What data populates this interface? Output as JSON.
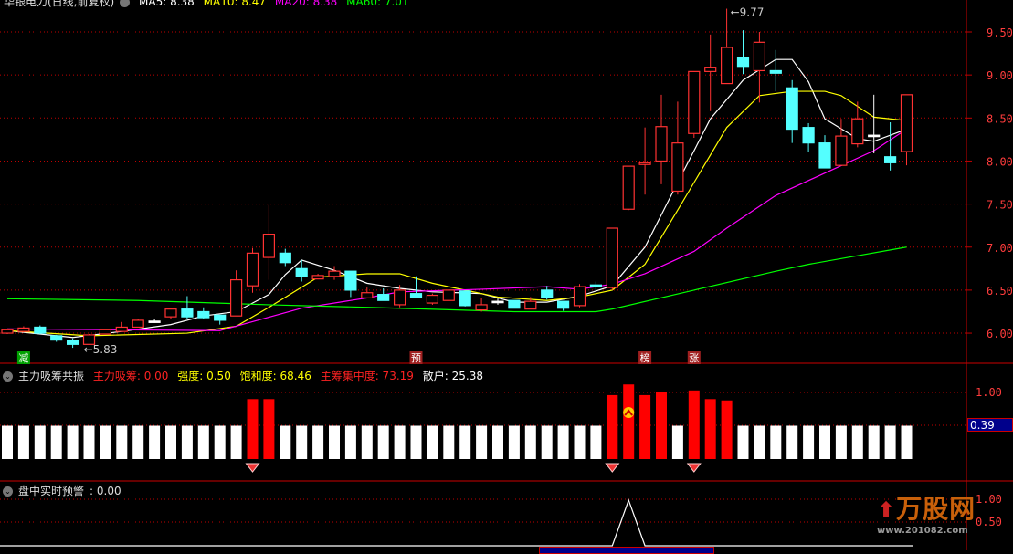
{
  "header": {
    "title": "华银电力(日线,前复权)",
    "ma5": "MA5: 8.38",
    "ma10": "MA10: 8.47",
    "ma20": "MA20: 8.38",
    "ma60": "MA60: 7.01"
  },
  "colors": {
    "up": "#ff3232",
    "down": "#54ffff",
    "ma5": "#ffffff",
    "ma10": "#ffff00",
    "ma20": "#ff00ff",
    "ma60": "#00ff00",
    "grid": "#c00000"
  },
  "main_axis": [
    "9.50",
    "9.00",
    "8.50",
    "8.00",
    "7.50",
    "7.00",
    "6.50",
    "6.00"
  ],
  "annotations": {
    "low": "5.83",
    "high": "9.77"
  },
  "markers": [
    {
      "label": "减",
      "index": 1,
      "color": "#00a000"
    },
    {
      "label": "预",
      "index": 25,
      "color": "#a02020"
    },
    {
      "label": "榜",
      "index": 39,
      "color": "#a02020"
    },
    {
      "label": "涨",
      "index": 42,
      "color": "#a02020"
    }
  ],
  "panel1": {
    "title": "主力吸筹共振",
    "f1": "主力吸筹: 0.00",
    "f2": "强度: 0.50",
    "f3": "饱和度: 68.46",
    "f4": "主筹集中度: 73.19",
    "f5": "散户: 25.38",
    "axis_top": "1.00",
    "current": "0.39",
    "bars_default": 0.5,
    "red_bars": {
      "15": 0.9,
      "16": 0.9,
      "37": 0.96,
      "38": 1.12,
      "39": 0.96,
      "40": 1.0,
      "42": 1.03,
      "43": 0.9,
      "44": 0.88
    },
    "gem_icons": [
      15,
      37,
      42
    ],
    "up_arrow_icon": [
      38
    ]
  },
  "panel2": {
    "title": "盘中实时预警",
    "value": ": 0.00",
    "axis": [
      "1.00",
      "0.50"
    ],
    "spike_index": 38,
    "spike_value": 1.0
  },
  "logo": {
    "text": "万股网",
    "url": "www.201082.com"
  },
  "chart_data": {
    "type": "candlestick",
    "ylim": [
      6.0,
      9.5
    ],
    "ohlc": [
      [
        6.0,
        6.05,
        5.99,
        6.04
      ],
      [
        6.02,
        6.08,
        6.01,
        6.06
      ],
      [
        6.07,
        6.09,
        5.99,
        6.0
      ],
      [
        5.97,
        5.98,
        5.9,
        5.92
      ],
      [
        5.92,
        5.94,
        5.83,
        5.87
      ],
      [
        5.87,
        5.99,
        5.87,
        5.98
      ],
      [
        5.99,
        6.04,
        5.99,
        6.04
      ],
      [
        6.02,
        6.13,
        6.02,
        6.07
      ],
      [
        6.07,
        6.17,
        6.07,
        6.15
      ],
      [
        6.14,
        6.16,
        6.12,
        6.14
      ],
      [
        6.19,
        6.28,
        6.16,
        6.28
      ],
      [
        6.28,
        6.43,
        6.16,
        6.19
      ],
      [
        6.25,
        6.3,
        6.16,
        6.18
      ],
      [
        6.21,
        6.21,
        6.1,
        6.15
      ],
      [
        6.2,
        6.73,
        6.2,
        6.62
      ],
      [
        6.55,
        6.99,
        6.47,
        6.93
      ],
      [
        6.88,
        7.49,
        6.62,
        7.15
      ],
      [
        6.93,
        6.98,
        6.78,
        6.82
      ],
      [
        6.75,
        6.85,
        6.6,
        6.66
      ],
      [
        6.63,
        6.69,
        6.63,
        6.67
      ],
      [
        6.66,
        6.78,
        6.62,
        6.72
      ],
      [
        6.72,
        6.72,
        6.42,
        6.5
      ],
      [
        6.41,
        6.53,
        6.41,
        6.47
      ],
      [
        6.45,
        6.52,
        6.38,
        6.38
      ],
      [
        6.33,
        6.56,
        6.3,
        6.5
      ],
      [
        6.46,
        6.66,
        6.41,
        6.41
      ],
      [
        6.35,
        6.46,
        6.33,
        6.44
      ],
      [
        6.38,
        6.5,
        6.38,
        6.5
      ],
      [
        6.49,
        6.49,
        6.31,
        6.32
      ],
      [
        6.27,
        6.41,
        6.25,
        6.33
      ],
      [
        6.37,
        6.41,
        6.33,
        6.37
      ],
      [
        6.38,
        6.38,
        6.29,
        6.29
      ],
      [
        6.28,
        6.42,
        6.28,
        6.37
      ],
      [
        6.5,
        6.55,
        6.39,
        6.42
      ],
      [
        6.37,
        6.37,
        6.26,
        6.29
      ],
      [
        6.32,
        6.57,
        6.3,
        6.54
      ],
      [
        6.56,
        6.6,
        6.5,
        6.55
      ],
      [
        6.53,
        7.22,
        6.5,
        7.22
      ],
      [
        7.44,
        7.94,
        7.43,
        7.94
      ],
      [
        7.96,
        8.39,
        7.61,
        7.98
      ],
      [
        8.0,
        8.77,
        7.73,
        8.4
      ],
      [
        7.65,
        8.69,
        7.61,
        8.21
      ],
      [
        8.32,
        9.04,
        8.27,
        9.04
      ],
      [
        9.04,
        9.47,
        8.58,
        9.09
      ],
      [
        8.9,
        9.77,
        8.9,
        9.32
      ],
      [
        9.2,
        9.52,
        9.01,
        9.1
      ],
      [
        9.05,
        9.5,
        8.68,
        9.38
      ],
      [
        9.05,
        9.29,
        8.81,
        9.02
      ],
      [
        8.85,
        8.94,
        8.21,
        8.37
      ],
      [
        8.39,
        8.44,
        8.11,
        8.21
      ],
      [
        8.21,
        8.3,
        7.92,
        7.92
      ],
      [
        7.95,
        8.49,
        7.95,
        8.29
      ],
      [
        8.2,
        8.69,
        8.16,
        8.49
      ],
      [
        8.3,
        8.77,
        8.09,
        8.3
      ],
      [
        8.05,
        8.45,
        7.89,
        7.98
      ],
      [
        8.11,
        8.77,
        7.95,
        8.77
      ]
    ],
    "series": [
      {
        "name": "MA5",
        "points": [
          [
            0,
            6.03
          ],
          [
            4,
            5.95
          ],
          [
            7,
            6.02
          ],
          [
            10,
            6.1
          ],
          [
            12,
            6.2
          ],
          [
            14,
            6.25
          ],
          [
            16,
            6.45
          ],
          [
            17,
            6.68
          ],
          [
            18,
            6.85
          ],
          [
            20,
            6.73
          ],
          [
            22,
            6.58
          ],
          [
            24,
            6.52
          ],
          [
            26,
            6.48
          ],
          [
            29,
            6.46
          ],
          [
            31,
            6.36
          ],
          [
            33,
            6.36
          ],
          [
            35,
            6.43
          ],
          [
            37,
            6.55
          ],
          [
            39,
            7.0
          ],
          [
            41,
            7.75
          ],
          [
            43,
            8.49
          ],
          [
            45,
            8.94
          ],
          [
            47,
            9.18
          ],
          [
            48,
            9.18
          ],
          [
            49,
            8.92
          ],
          [
            50,
            8.49
          ],
          [
            52,
            8.26
          ],
          [
            53,
            8.23
          ],
          [
            55,
            8.37
          ]
        ]
      },
      {
        "name": "MA10",
        "points": [
          [
            0,
            6.03
          ],
          [
            5,
            5.97
          ],
          [
            11,
            6.0
          ],
          [
            14,
            6.08
          ],
          [
            16,
            6.3
          ],
          [
            19,
            6.65
          ],
          [
            22,
            6.69
          ],
          [
            24,
            6.69
          ],
          [
            26,
            6.58
          ],
          [
            30,
            6.42
          ],
          [
            33,
            6.38
          ],
          [
            35,
            6.42
          ],
          [
            37,
            6.5
          ],
          [
            39,
            6.8
          ],
          [
            41,
            7.43
          ],
          [
            44,
            8.39
          ],
          [
            46,
            8.76
          ],
          [
            48,
            8.81
          ],
          [
            50,
            8.81
          ],
          [
            51,
            8.76
          ],
          [
            53,
            8.51
          ],
          [
            55,
            8.47
          ]
        ]
      },
      {
        "name": "MA20",
        "points": [
          [
            0,
            6.05
          ],
          [
            13,
            6.03
          ],
          [
            18,
            6.29
          ],
          [
            22,
            6.41
          ],
          [
            24,
            6.48
          ],
          [
            29,
            6.51
          ],
          [
            33,
            6.54
          ],
          [
            35,
            6.51
          ],
          [
            37,
            6.57
          ],
          [
            39,
            6.69
          ],
          [
            42,
            6.95
          ],
          [
            44,
            7.22
          ],
          [
            47,
            7.6
          ],
          [
            50,
            7.86
          ],
          [
            53,
            8.12
          ],
          [
            55,
            8.37
          ]
        ]
      },
      {
        "name": "MA60",
        "points": [
          [
            0,
            6.4
          ],
          [
            8,
            6.38
          ],
          [
            16,
            6.33
          ],
          [
            22,
            6.3
          ],
          [
            31,
            6.25
          ],
          [
            36,
            6.25
          ],
          [
            37,
            6.28
          ],
          [
            42,
            6.5
          ],
          [
            47,
            6.72
          ],
          [
            49,
            6.8
          ],
          [
            55,
            7.0
          ]
        ]
      }
    ]
  }
}
